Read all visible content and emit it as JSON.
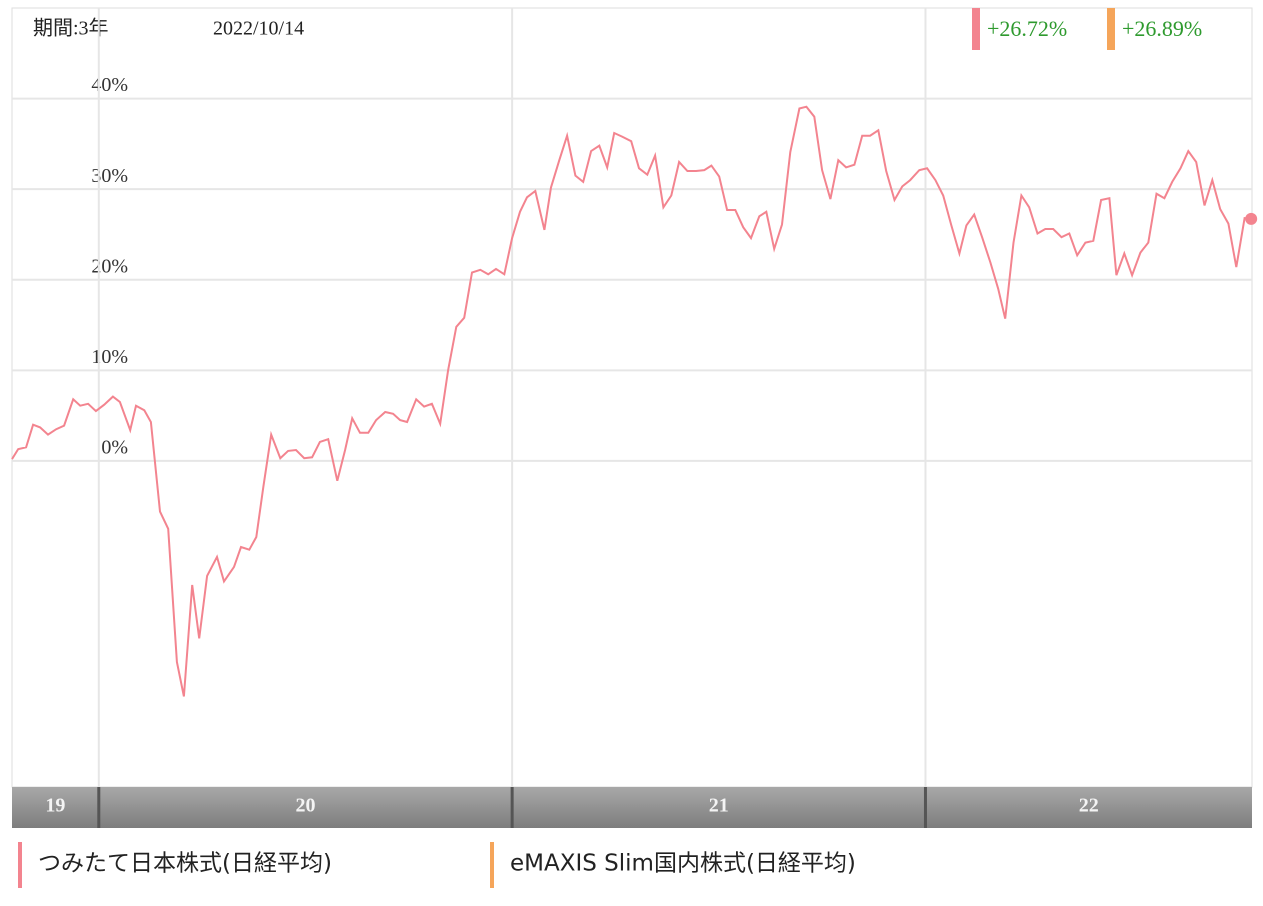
{
  "chart_data": {
    "type": "line",
    "period": "期間:3年",
    "date": "2022/10/14",
    "x": [
      2019.79,
      2019.805,
      2019.824,
      2019.841,
      2019.858,
      2019.877,
      2019.897,
      2019.916,
      2019.938,
      2019.955,
      2019.974,
      2019.993,
      2020.013,
      2020.034,
      2020.051,
      2020.076,
      2020.09,
      2020.11,
      2020.126,
      2020.148,
      2020.168,
      2020.189,
      2020.206,
      2020.226,
      2020.243,
      2020.262,
      2020.286,
      2020.303,
      2020.327,
      2020.344,
      2020.364,
      2020.381,
      2020.398,
      2020.417,
      2020.439,
      2020.458,
      2020.477,
      2020.497,
      2020.516,
      2020.535,
      2020.555,
      2020.577,
      2020.596,
      2020.613,
      2020.632,
      2020.652,
      2020.671,
      2020.693,
      2020.712,
      2020.729,
      2020.746,
      2020.768,
      2020.787,
      2020.806,
      2020.826,
      2020.845,
      2020.865,
      2020.884,
      2020.903,
      2020.923,
      2020.942,
      2020.961,
      2020.981,
      2021.0,
      2021.019,
      2021.036,
      2021.056,
      2021.078,
      2021.094,
      2021.114,
      2021.133,
      2021.153,
      2021.172,
      2021.191,
      2021.211,
      2021.23,
      2021.247,
      2021.266,
      2021.288,
      2021.307,
      2021.327,
      2021.346,
      2021.366,
      2021.385,
      2021.404,
      2021.424,
      2021.445,
      2021.465,
      2021.482,
      2021.501,
      2021.52,
      2021.54,
      2021.559,
      2021.578,
      2021.598,
      2021.615,
      2021.634,
      2021.653,
      2021.673,
      2021.695,
      2021.712,
      2021.731,
      2021.75,
      2021.77,
      2021.789,
      2021.808,
      2021.828,
      2021.847,
      2021.866,
      2021.886,
      2021.905,
      2021.925,
      2021.944,
      2021.963,
      2021.985,
      2022.004,
      2022.024,
      2022.043,
      2022.062,
      2022.082,
      2022.099,
      2022.118,
      2022.137,
      2022.157,
      2022.176,
      2022.193,
      2022.213,
      2022.232,
      2022.251,
      2022.271,
      2022.29,
      2022.309,
      2022.329,
      2022.348,
      2022.367,
      2022.387,
      2022.406,
      2022.425,
      2022.445,
      2022.462,
      2022.481,
      2022.5,
      2022.52,
      2022.539,
      2022.559,
      2022.578,
      2022.597,
      2022.617,
      2022.636,
      2022.655,
      2022.675,
      2022.694,
      2022.713,
      2022.733,
      2022.752,
      2022.772,
      2022.788
    ],
    "series": [
      {
        "name": "つみたて日本株式(日経平均)",
        "color": "#f3848f",
        "change": {
          "value": 26.72,
          "label": "+26.72%"
        },
        "values": [
          0.2,
          1.3,
          1.5,
          4.0,
          3.7,
          2.9,
          3.5,
          3.9,
          6.8,
          6.1,
          6.3,
          5.5,
          6.2,
          7.1,
          6.5,
          3.4,
          6.1,
          5.6,
          4.3,
          -5.6,
          -7.5,
          -22.2,
          -26.0,
          -13.7,
          -19.6,
          -12.7,
          -10.6,
          -13.3,
          -11.7,
          -9.5,
          -9.8,
          -8.4,
          -2.9,
          2.9,
          0.3,
          1.1,
          1.2,
          0.3,
          0.4,
          2.1,
          2.4,
          -2.2,
          1.2,
          4.7,
          3.1,
          3.1,
          4.5,
          5.4,
          5.2,
          4.5,
          4.3,
          6.8,
          6.0,
          6.3,
          4.1,
          10.0,
          14.8,
          15.8,
          20.8,
          21.1,
          20.6,
          21.2,
          20.6,
          24.6,
          27.5,
          29.1,
          29.8,
          25.5,
          30.2,
          33.2,
          35.9,
          31.5,
          30.8,
          34.2,
          34.8,
          32.4,
          36.2,
          35.8,
          35.3,
          32.3,
          31.6,
          33.7,
          28.0,
          29.3,
          33.0,
          32.0,
          32.0,
          32.1,
          32.6,
          31.4,
          27.7,
          27.7,
          25.8,
          24.6,
          27.0,
          27.5,
          23.4,
          26.1,
          34.1,
          38.9,
          39.1,
          38.0,
          32.1,
          28.9,
          33.2,
          32.4,
          32.7,
          35.9,
          35.9,
          36.5,
          32.0,
          28.8,
          30.3,
          31.0,
          32.1,
          32.3,
          31.0,
          29.3,
          26.1,
          22.9,
          26.0,
          27.2,
          24.7,
          21.9,
          19.0,
          15.7,
          24.1,
          29.3,
          28.0,
          25.1,
          25.6,
          25.6,
          24.7,
          25.1,
          22.7,
          24.1,
          24.3,
          28.8,
          29.0,
          20.5,
          22.9,
          20.5,
          23.0,
          24.1,
          29.5,
          29.0,
          30.8,
          32.3,
          34.2,
          33.0,
          28.2,
          31.0,
          27.8,
          26.2,
          21.4,
          26.8,
          26.72
        ]
      },
      {
        "name": "eMAXIS Slim国内株式(日経平均)",
        "color": "#f5a55a",
        "change": {
          "value": 26.89,
          "label": "+26.89%"
        }
      }
    ],
    "xlim": [
      2019.79,
      2022.79
    ],
    "xticks": [
      {
        "value": 2019,
        "label": "19"
      },
      {
        "value": 2020,
        "label": "20"
      },
      {
        "value": 2021,
        "label": "21"
      },
      {
        "value": 2022,
        "label": "22"
      }
    ],
    "ylim": [
      -36,
      50
    ],
    "yticks": [
      {
        "value": 0,
        "label": "0%"
      },
      {
        "value": 10,
        "label": "10%"
      },
      {
        "value": 20,
        "label": "20%"
      },
      {
        "value": 30,
        "label": "30%"
      },
      {
        "value": 40,
        "label": "40%"
      }
    ],
    "grid": true
  }
}
